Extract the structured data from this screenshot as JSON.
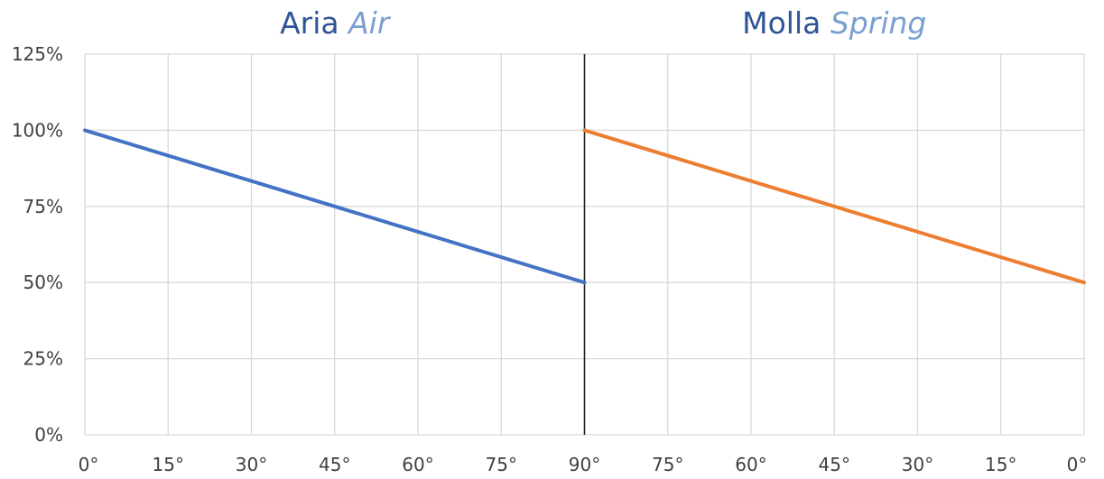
{
  "chart_data": {
    "type": "line",
    "titles": [
      {
        "main": "Aria",
        "italic": "Air"
      },
      {
        "main": "Molla",
        "italic": "Spring"
      }
    ],
    "y_ticks": [
      "0%",
      "25%",
      "50%",
      "75%",
      "100%",
      "125%"
    ],
    "ylim": [
      0,
      125
    ],
    "x_tick_labels": [
      "0°",
      "15°",
      "30°",
      "45°",
      "60°",
      "75°",
      "90°",
      "75°",
      "60°",
      "45°",
      "30°",
      "15°",
      "0°"
    ],
    "grid": true,
    "series": [
      {
        "x": [
          "0°",
          "90°"
        ],
        "values": [
          100,
          50
        ],
        "color": "#4472c4"
      },
      {
        "x": [
          "90°",
          "0°"
        ],
        "values": [
          100,
          50
        ],
        "color": "#ed7d31"
      }
    ],
    "divider_at": "90°"
  }
}
